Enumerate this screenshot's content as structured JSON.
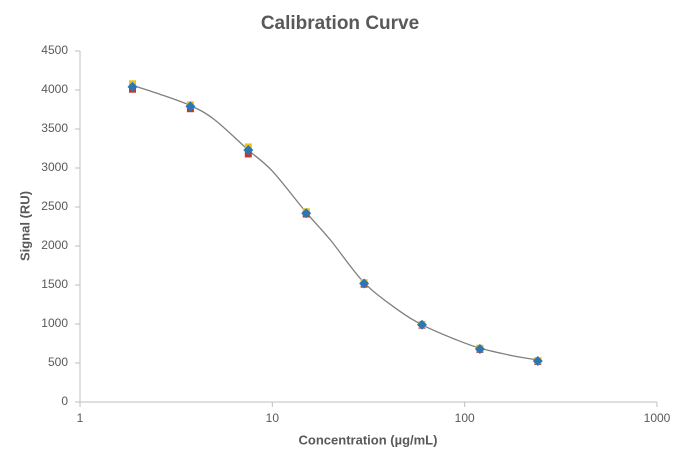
{
  "chart_data": {
    "type": "scatter",
    "title": "Calibration Curve",
    "x_label": "Concentration (µg/mL)",
    "y_label": "Signal (RU)",
    "x": [
      1.875,
      3.75,
      7.5,
      15,
      30,
      60,
      120,
      240
    ],
    "series": [
      {
        "color": "#c0392b",
        "marker": "square",
        "values": [
          4010,
          3760,
          3180,
          2410,
          1510,
          985,
          675,
          520
        ]
      },
      {
        "color": "#e6c619",
        "marker": "square",
        "values": [
          4080,
          3810,
          3270,
          2440,
          1530,
          995,
          690,
          530
        ]
      },
      {
        "color": "#2e75b6",
        "marker": "diamond",
        "values": [
          4040,
          3790,
          3230,
          2420,
          1520,
          990,
          680,
          525
        ]
      }
    ],
    "fit": {
      "color": "#7f7f7f",
      "x": [
        1.875,
        2.5,
        3.75,
        5,
        7.5,
        10,
        15,
        20,
        30,
        45,
        60,
        90,
        120,
        180,
        240
      ],
      "values": [
        4060,
        3960,
        3800,
        3620,
        3230,
        2960,
        2430,
        2080,
        1530,
        1180,
        990,
        800,
        690,
        590,
        540
      ]
    },
    "xscale": "log",
    "xlim": [
      1,
      1000
    ],
    "xticks": [
      1,
      10,
      100,
      1000
    ],
    "ylim": [
      0,
      4500
    ],
    "yticks": [
      0,
      500,
      1000,
      1500,
      2000,
      2500,
      3000,
      3500,
      4000,
      4500
    ],
    "grid": false
  }
}
